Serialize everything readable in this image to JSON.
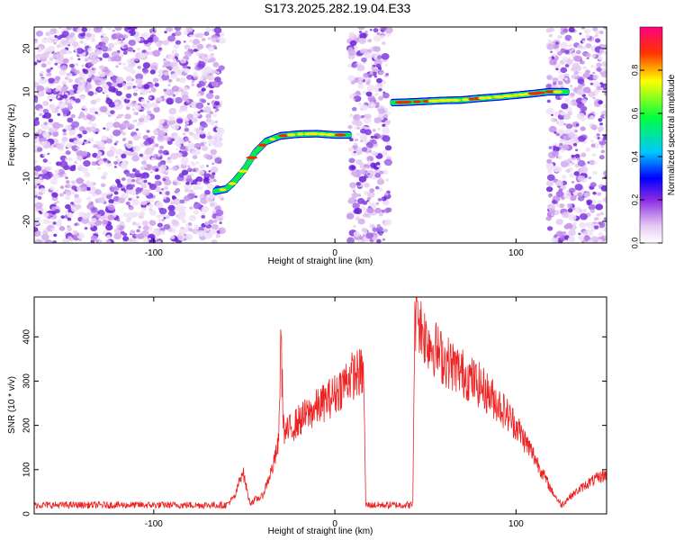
{
  "chart_data": [
    {
      "type": "heatmap",
      "title": "S173.2025.282.19.04.E33",
      "xlabel": "Height of straight line (km)",
      "ylabel": "Frequency (Hz)",
      "xlim": [
        -166,
        150
      ],
      "ylim": [
        -25,
        25
      ],
      "x_ticks": [
        -100,
        0,
        100
      ],
      "y_ticks": [
        -20,
        -10,
        0,
        10,
        20
      ],
      "colorbar": {
        "label": "Normalized spectral amplitude",
        "range": [
          0,
          1
        ],
        "ticks": [
          "0.0",
          "0.2",
          "0.4",
          "0.6",
          "0.8"
        ],
        "tick_values": [
          0.0,
          0.2,
          0.4,
          0.6,
          0.8
        ]
      },
      "noise_segments": [
        [
          -166,
          -62
        ],
        [
          8,
          30
        ],
        [
          118,
          150
        ]
      ],
      "trace_segments": [
        {
          "x": [
            -66,
            -60,
            -56,
            -50,
            -44,
            -38,
            -30,
            -20,
            -10,
            0,
            8
          ],
          "y": [
            -13,
            -12.5,
            -11,
            -8,
            -4,
            -1.5,
            -0.2,
            0.2,
            0.3,
            0,
            0
          ]
        },
        {
          "x": [
            32,
            40,
            50,
            60,
            70,
            80,
            90,
            100,
            110,
            118,
            128
          ],
          "y": [
            7.5,
            7.6,
            7.8,
            8,
            8.1,
            8.5,
            8.8,
            9.2,
            9.6,
            10,
            10
          ]
        }
      ]
    },
    {
      "type": "line",
      "xlabel": "Height of straight line (km)",
      "ylabel": "SNR (10 * v/v)",
      "xlim": [
        -166,
        150
      ],
      "ylim": [
        0,
        490
      ],
      "x_ticks": [
        -100,
        0,
        100
      ],
      "y_ticks": [
        0,
        100,
        200,
        300,
        400
      ],
      "color": "#ee2222",
      "envelope": {
        "x": [
          -166,
          -60,
          -55,
          -51,
          -47,
          -40,
          -34,
          -31,
          -30,
          -28,
          -20,
          -10,
          0,
          8,
          15,
          16,
          17,
          30,
          43,
          44,
          45,
          50,
          60,
          70,
          80,
          90,
          100,
          110,
          115,
          120,
          125,
          130,
          140,
          150
        ],
        "y": [
          20,
          20,
          40,
          100,
          25,
          40,
          110,
          160,
          380,
          180,
          210,
          240,
          270,
          310,
          320,
          300,
          20,
          20,
          20,
          420,
          450,
          400,
          350,
          320,
          290,
          250,
          200,
          130,
          90,
          50,
          20,
          40,
          70,
          90
        ]
      },
      "spikes": [
        {
          "x": -29.5,
          "y": 400
        },
        {
          "x": 45.5,
          "y": 480
        }
      ]
    }
  ]
}
